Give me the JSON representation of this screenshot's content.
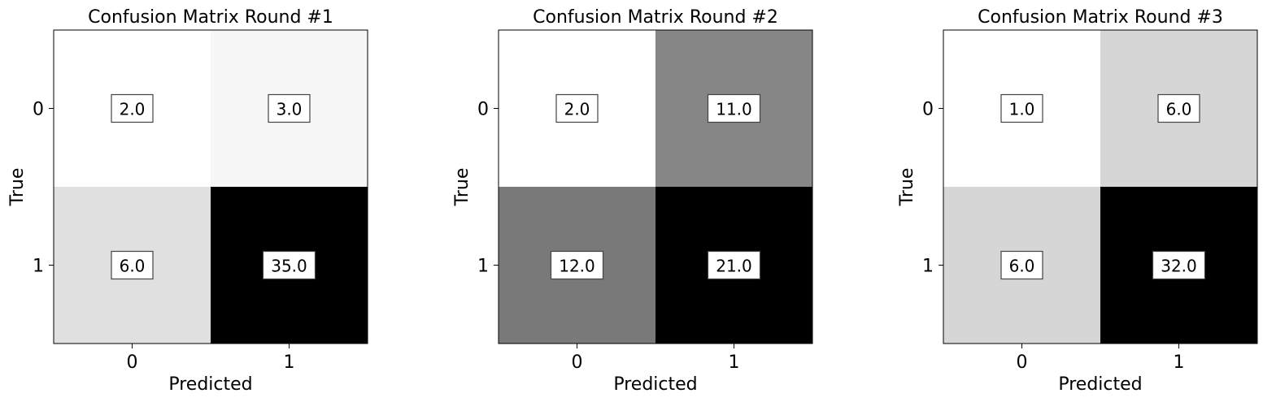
{
  "chart_data": [
    {
      "type": "heatmap",
      "title": "Confusion Matrix Round #1",
      "xlabel": "Predicted",
      "ylabel": "True",
      "x_categories": [
        "0",
        "1"
      ],
      "y_categories": [
        "0",
        "1"
      ],
      "values": [
        [
          2.0,
          3.0
        ],
        [
          6.0,
          35.0
        ]
      ],
      "value_labels": [
        [
          "2.0",
          "3.0"
        ],
        [
          "6.0",
          "35.0"
        ]
      ],
      "colormap": "grayscale (white = low, black = high)",
      "grid": false,
      "legend": "none"
    },
    {
      "type": "heatmap",
      "title": "Confusion Matrix Round #2",
      "xlabel": "Predicted",
      "ylabel": "True",
      "x_categories": [
        "0",
        "1"
      ],
      "y_categories": [
        "0",
        "1"
      ],
      "values": [
        [
          2.0,
          11.0
        ],
        [
          12.0,
          21.0
        ]
      ],
      "value_labels": [
        [
          "2.0",
          "11.0"
        ],
        [
          "12.0",
          "21.0"
        ]
      ],
      "colormap": "grayscale (white = low, black = high)",
      "grid": false,
      "legend": "none"
    },
    {
      "type": "heatmap",
      "title": "Confusion Matrix Round #3",
      "xlabel": "Predicted",
      "ylabel": "True",
      "x_categories": [
        "0",
        "1"
      ],
      "y_categories": [
        "0",
        "1"
      ],
      "values": [
        [
          1.0,
          6.0
        ],
        [
          6.0,
          32.0
        ]
      ],
      "value_labels": [
        [
          "1.0",
          "6.0"
        ],
        [
          "6.0",
          "32.0"
        ]
      ],
      "colormap": "grayscale (white = low, black = high)",
      "grid": false,
      "legend": "none"
    }
  ]
}
